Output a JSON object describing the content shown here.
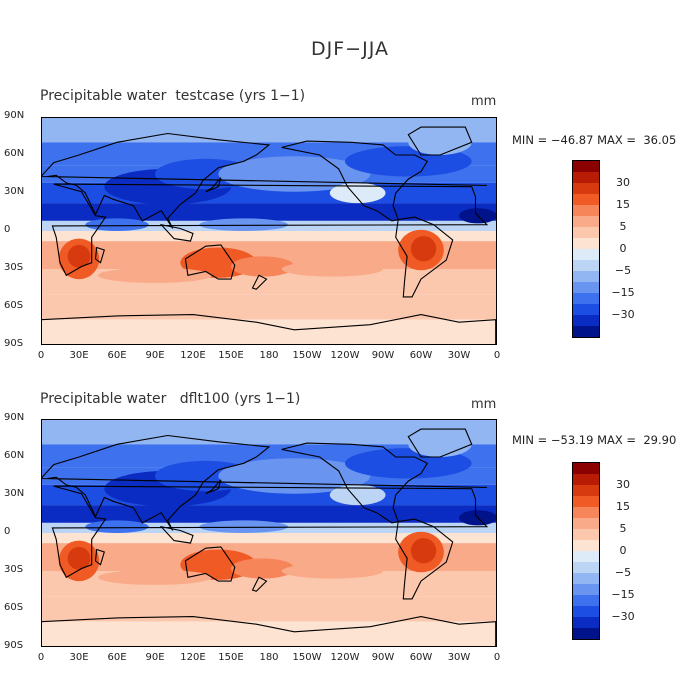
{
  "title": "DJF−JJA",
  "panels": [
    {
      "title": "Precipitable water  testcase (yrs 1−1)",
      "unit": "mm",
      "minmax": "MIN = −46.87 MAX =  36.05",
      "lat_labels": [
        "90N",
        "60N",
        "30N",
        "0",
        "30S",
        "60S",
        "90S"
      ],
      "lon_labels": [
        "0",
        "30E",
        "60E",
        "90E",
        "120E",
        "150E",
        "180",
        "150W",
        "120W",
        "90W",
        "60W",
        "30W",
        "0"
      ]
    },
    {
      "title": "Precipitable water   dflt100 (yrs 1−1)",
      "unit": "mm",
      "minmax": "MIN = −53.19 MAX =  29.90",
      "lat_labels": [
        "90N",
        "60N",
        "30N",
        "0",
        "30S",
        "60S",
        "90S"
      ],
      "lon_labels": [
        "0",
        "30E",
        "60E",
        "90E",
        "120E",
        "150E",
        "180",
        "150W",
        "120W",
        "90W",
        "60W",
        "30W",
        "0"
      ]
    }
  ],
  "colorbar": {
    "labels": [
      "30",
      "15",
      "5",
      "0",
      "−5",
      "−15",
      "−30"
    ],
    "colors": [
      "#8b0000",
      "#b81c04",
      "#d63a0e",
      "#f05a24",
      "#f6855a",
      "#f9aa89",
      "#fbc8ae",
      "#fde4d2",
      "#ddeaf8",
      "#bcd5f5",
      "#92b6f2",
      "#6995f0",
      "#3e71ee",
      "#1d4ee3",
      "#0a2cc2",
      "#01138a"
    ]
  }
}
